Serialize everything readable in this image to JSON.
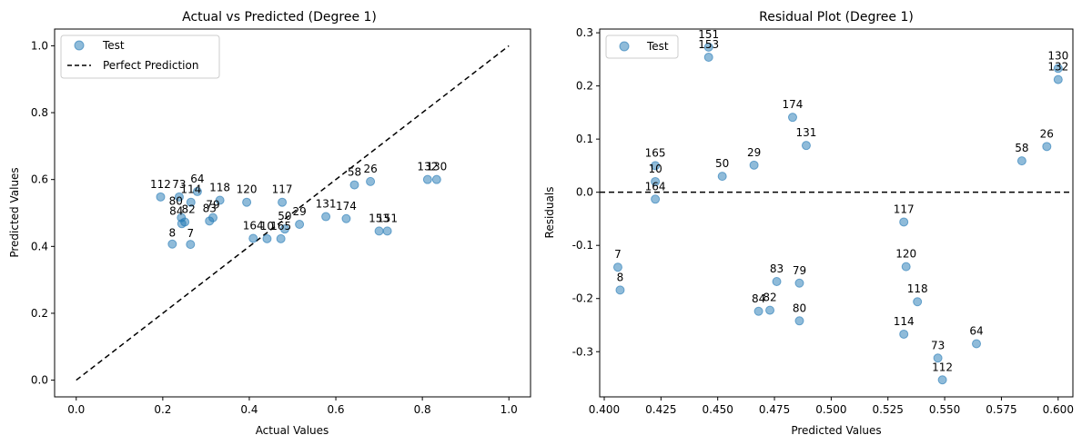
{
  "chart_data": [
    {
      "type": "scatter",
      "title": "Actual vs Predicted (Degree 1)",
      "xlabel": "Actual Values",
      "ylabel": "Predicted Values",
      "xlim": [
        -0.05,
        1.05
      ],
      "ylim": [
        -0.05,
        1.05
      ],
      "xticks": [
        "0.0",
        "0.2",
        "0.4",
        "0.6",
        "0.8",
        "1.0"
      ],
      "yticks": [
        "0.0",
        "0.2",
        "0.4",
        "0.6",
        "0.8",
        "1.0"
      ],
      "grid": false,
      "legend": {
        "position": "upper-left",
        "entries": [
          {
            "label": "Test",
            "marker": "circle"
          },
          {
            "label": "Perfect Prediction",
            "marker": "dashed-line"
          }
        ]
      },
      "reference_line": {
        "name": "Perfect Prediction",
        "x": [
          0,
          1
        ],
        "y": [
          0,
          1
        ],
        "style": "dashed",
        "color": "#000000"
      },
      "series": [
        {
          "name": "Test",
          "color": "#1f77b4",
          "points": [
            {
              "label": "112",
              "x": 0.195,
              "y": 0.548
            },
            {
              "label": "73",
              "x": 0.238,
              "y": 0.548
            },
            {
              "label": "64",
              "x": 0.28,
              "y": 0.564
            },
            {
              "label": "114",
              "x": 0.265,
              "y": 0.532
            },
            {
              "label": "118",
              "x": 0.332,
              "y": 0.538
            },
            {
              "label": "120",
              "x": 0.394,
              "y": 0.532
            },
            {
              "label": "117",
              "x": 0.476,
              "y": 0.532
            },
            {
              "label": "58",
              "x": 0.643,
              "y": 0.584
            },
            {
              "label": "26",
              "x": 0.68,
              "y": 0.594
            },
            {
              "label": "132",
              "x": 0.812,
              "y": 0.6
            },
            {
              "label": "130",
              "x": 0.833,
              "y": 0.6
            },
            {
              "label": "80",
              "x": 0.243,
              "y": 0.486
            },
            {
              "label": "84",
              "x": 0.244,
              "y": 0.468
            },
            {
              "label": "82",
              "x": 0.251,
              "y": 0.473
            },
            {
              "label": "79",
              "x": 0.316,
              "y": 0.486
            },
            {
              "label": "83",
              "x": 0.308,
              "y": 0.476
            },
            {
              "label": "8",
              "x": 0.222,
              "y": 0.407
            },
            {
              "label": "7",
              "x": 0.264,
              "y": 0.406
            },
            {
              "label": "164",
              "x": 0.409,
              "y": 0.424
            },
            {
              "label": "10",
              "x": 0.441,
              "y": 0.423
            },
            {
              "label": "165",
              "x": 0.473,
              "y": 0.423
            },
            {
              "label": "50",
              "x": 0.482,
              "y": 0.452
            },
            {
              "label": "29",
              "x": 0.516,
              "y": 0.466
            },
            {
              "label": "131",
              "x": 0.577,
              "y": 0.489
            },
            {
              "label": "174",
              "x": 0.624,
              "y": 0.483
            },
            {
              "label": "153",
              "x": 0.7,
              "y": 0.446
            },
            {
              "label": "151",
              "x": 0.719,
              "y": 0.446
            }
          ]
        }
      ]
    },
    {
      "type": "scatter",
      "title": "Residual Plot (Degree 1)",
      "xlabel": "Predicted Values",
      "ylabel": "Residuals",
      "xlim": [
        0.398,
        0.6065
      ],
      "ylim": [
        -0.385,
        0.307
      ],
      "xticks": [
        "0.400",
        "0.425",
        "0.450",
        "0.475",
        "0.500",
        "0.525",
        "0.550",
        "0.575",
        "0.600"
      ],
      "yticks": [
        "-0.3",
        "-0.2",
        "-0.1",
        "0.0",
        "0.1",
        "0.2",
        "0.3"
      ],
      "grid": false,
      "legend": {
        "position": "upper-left",
        "entries": [
          {
            "label": "Test",
            "marker": "circle"
          }
        ]
      },
      "reference_line": {
        "y": 0,
        "style": "dashed",
        "color": "#000000"
      },
      "series": [
        {
          "name": "Test",
          "color": "#1f77b4",
          "points": [
            {
              "label": "151",
              "x": 0.446,
              "y": 0.273
            },
            {
              "label": "153",
              "x": 0.446,
              "y": 0.254
            },
            {
              "label": "130",
              "x": 0.6,
              "y": 0.233
            },
            {
              "label": "132",
              "x": 0.6,
              "y": 0.212
            },
            {
              "label": "174",
              "x": 0.483,
              "y": 0.141
            },
            {
              "label": "131",
              "x": 0.489,
              "y": 0.088
            },
            {
              "label": "26",
              "x": 0.595,
              "y": 0.086
            },
            {
              "label": "58",
              "x": 0.584,
              "y": 0.059
            },
            {
              "label": "165",
              "x": 0.4225,
              "y": 0.05
            },
            {
              "label": "50",
              "x": 0.452,
              "y": 0.03
            },
            {
              "label": "29",
              "x": 0.466,
              "y": 0.051
            },
            {
              "label": "10",
              "x": 0.4225,
              "y": 0.02
            },
            {
              "label": "164",
              "x": 0.4225,
              "y": -0.013
            },
            {
              "label": "117",
              "x": 0.532,
              "y": -0.056
            },
            {
              "label": "7",
              "x": 0.406,
              "y": -0.141
            },
            {
              "label": "120",
              "x": 0.533,
              "y": -0.14
            },
            {
              "label": "8",
              "x": 0.407,
              "y": -0.184
            },
            {
              "label": "83",
              "x": 0.476,
              "y": -0.168
            },
            {
              "label": "79",
              "x": 0.486,
              "y": -0.171
            },
            {
              "label": "118",
              "x": 0.538,
              "y": -0.206
            },
            {
              "label": "84",
              "x": 0.468,
              "y": -0.224
            },
            {
              "label": "82",
              "x": 0.473,
              "y": -0.222
            },
            {
              "label": "80",
              "x": 0.486,
              "y": -0.242
            },
            {
              "label": "114",
              "x": 0.532,
              "y": -0.267
            },
            {
              "label": "73",
              "x": 0.547,
              "y": -0.312
            },
            {
              "label": "64",
              "x": 0.564,
              "y": -0.285
            },
            {
              "label": "112",
              "x": 0.549,
              "y": -0.353
            }
          ]
        }
      ]
    }
  ]
}
